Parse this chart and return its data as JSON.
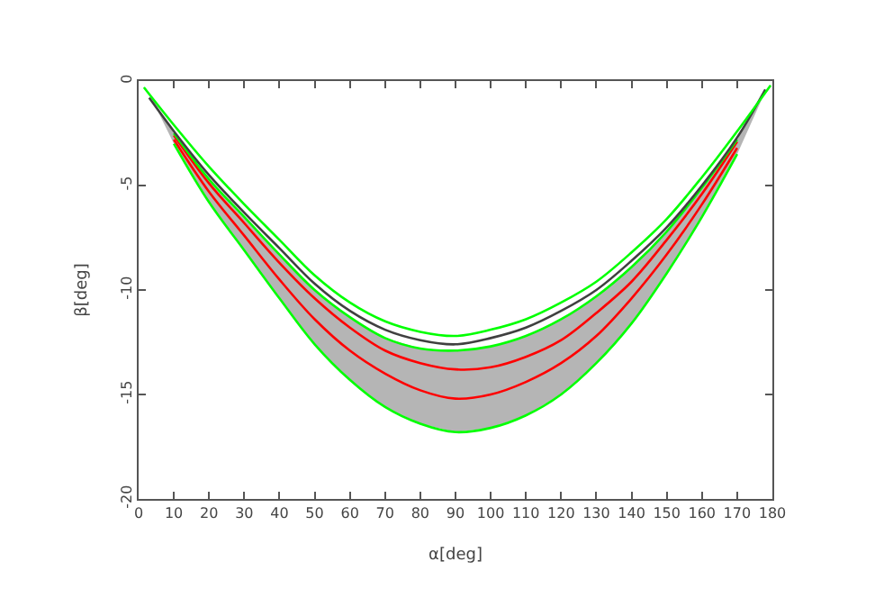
{
  "chart_data": {
    "type": "line",
    "xlabel": "α[deg]",
    "ylabel": "β[deg]",
    "x": [
      3,
      10,
      20,
      30,
      40,
      50,
      60,
      70,
      80,
      90,
      100,
      110,
      120,
      130,
      140,
      150,
      160,
      170,
      178
    ],
    "xlim": [
      0,
      180
    ],
    "xticks": [
      0,
      10,
      20,
      30,
      40,
      50,
      60,
      70,
      80,
      90,
      100,
      110,
      120,
      130,
      140,
      150,
      160,
      170,
      180
    ],
    "ylim": [
      -20,
      0
    ],
    "yticks": [
      -20,
      -15,
      -10,
      -5,
      0
    ],
    "marker": "none",
    "line_style": "solid",
    "series": [
      {
        "color": "#ff0000",
        "values": [
          null,
          -2.6,
          -4.9,
          -6.8,
          -8.7,
          -10.4,
          -11.8,
          -12.9,
          -13.5,
          -13.8,
          -13.7,
          -13.2,
          -12.4,
          -11.1,
          -9.6,
          -7.6,
          -5.4,
          -2.9,
          null
        ],
        "lower": [
          -0.6,
          -3.0,
          -5.8,
          -8.1,
          -10.4,
          -12.6,
          -14.3,
          -15.6,
          -16.4,
          -16.8,
          -16.6,
          -16.0,
          -15.0,
          -13.5,
          -11.6,
          -9.2,
          -6.5,
          -3.5,
          -0.5
        ],
        "upper": [
          -0.6,
          -2.5,
          -4.7,
          -6.5,
          -8.3,
          -10.0,
          -11.3,
          -12.3,
          -12.8,
          -12.9,
          -12.7,
          -12.2,
          -11.4,
          -10.3,
          -8.9,
          -7.2,
          -5.1,
          -2.8,
          -0.5
        ]
      },
      {
        "color": "#ff0000",
        "values": [
          null,
          -2.8,
          -5.3,
          -7.4,
          -9.5,
          -11.4,
          -12.9,
          -14.0,
          -14.8,
          -15.2,
          -15.0,
          -14.4,
          -13.5,
          -12.2,
          -10.4,
          -8.3,
          -5.9,
          -3.2,
          null
        ]
      },
      {
        "color": "#00ff00",
        "values": [
          null,
          -2.5,
          -4.7,
          -6.5,
          -8.3,
          -10.0,
          -11.3,
          -12.3,
          -12.8,
          -12.9,
          -12.7,
          -12.2,
          -11.4,
          -10.3,
          -8.9,
          -7.2,
          -5.1,
          -2.8,
          null
        ]
      },
      {
        "color": "#404040",
        "values": [
          -0.8,
          -2.4,
          -4.5,
          -6.3,
          -8.0,
          -9.7,
          -11.0,
          -11.9,
          -12.4,
          -12.6,
          -12.3,
          -11.8,
          -11.0,
          -10.0,
          -8.6,
          -7.0,
          -5.0,
          -2.7,
          -0.4
        ]
      },
      {
        "color": "#00ff00",
        "x": [
          1.5,
          10,
          20,
          30,
          40,
          50,
          60,
          70,
          80,
          90,
          100,
          110,
          120,
          130,
          140,
          150,
          160,
          170,
          179.5
        ],
        "values": [
          -0.3,
          -2.1,
          -4.1,
          -5.9,
          -7.6,
          -9.3,
          -10.6,
          -11.5,
          -12.0,
          -12.2,
          -11.9,
          -11.4,
          -10.6,
          -9.6,
          -8.2,
          -6.6,
          -4.6,
          -2.4,
          -0.2
        ]
      },
      {
        "color": "#00ff00",
        "values": [
          null,
          -3.0,
          -5.8,
          -8.1,
          -10.4,
          -12.6,
          -14.3,
          -15.6,
          -16.4,
          -16.8,
          -16.6,
          -16.0,
          -15.0,
          -13.5,
          -11.6,
          -9.2,
          -6.5,
          -3.5,
          null
        ]
      }
    ]
  }
}
